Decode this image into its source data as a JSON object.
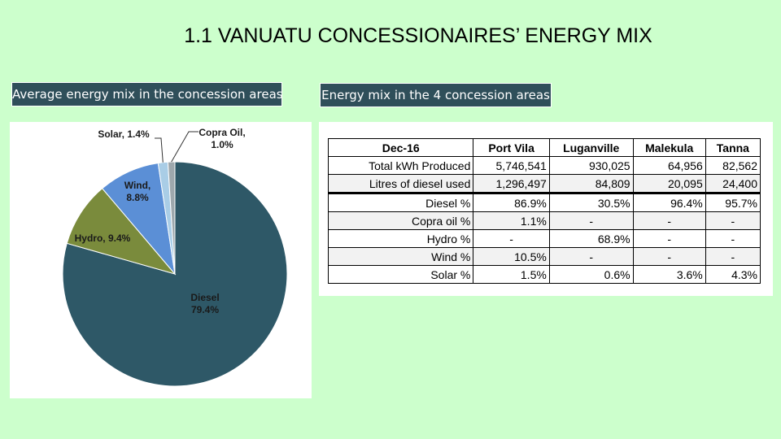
{
  "title": "1.1 VANUATU CONCESSIONAIRES’ ENERGY MIX",
  "left_label": "Average energy mix in the concession areas",
  "right_label": "Energy mix in the 4 concession areas",
  "chart_data": [
    {
      "type": "pie",
      "title": "",
      "slices": [
        {
          "label": "Diesel",
          "value": 79.4,
          "display": "79.4%",
          "color": "#2e5867"
        },
        {
          "label": "Hydro",
          "value": 9.4,
          "display": "9.4%",
          "color": "#7a8b3c"
        },
        {
          "label": "Wind",
          "value": 8.8,
          "display": "8.8%",
          "color": "#5b8fd6"
        },
        {
          "label": "Solar",
          "value": 1.4,
          "display": "1.4%",
          "color": "#a9cde6"
        },
        {
          "label": "Copra Oil",
          "value": 1.0,
          "display": "1.0%",
          "color": "#9ea8ad"
        }
      ]
    },
    {
      "type": "table",
      "columns": [
        "Dec-16",
        "Port Vila",
        "Luganville",
        "Malekula",
        "Tanna"
      ],
      "rows": [
        [
          "Total kWh Produced",
          "5,746,541",
          "930,025",
          "64,956",
          "82,562"
        ],
        [
          "Litres of diesel used",
          "1,296,497",
          "84,809",
          "20,095",
          "24,400"
        ],
        [
          "Diesel %",
          "86.9%",
          "30.5%",
          "96.4%",
          "95.7%"
        ],
        [
          "Copra oil %",
          "1.1%",
          "-",
          "-",
          "-"
        ],
        [
          "Hydro %",
          "-",
          "68.9%",
          "-",
          "-"
        ],
        [
          "Wind %",
          "10.5%",
          "-",
          "-",
          "-"
        ],
        [
          "Solar %",
          "1.5%",
          "0.6%",
          "3.6%",
          "4.3%"
        ]
      ]
    }
  ]
}
